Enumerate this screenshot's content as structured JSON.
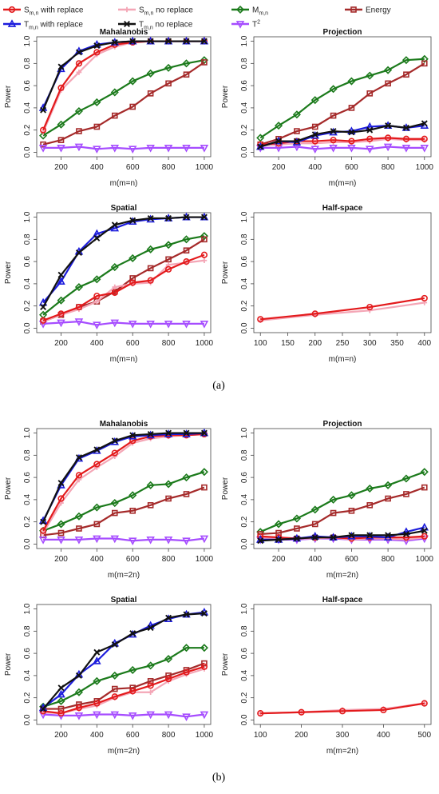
{
  "legend": {
    "items": [
      {
        "key": "s_with",
        "prefix": "S",
        "sub": "m,n",
        "suffix": " with replace",
        "color": "#e31a1c",
        "marker": "circle"
      },
      {
        "key": "s_no",
        "prefix": "S",
        "sub": "m,n",
        "suffix": " no replace",
        "color": "#f4a6b6",
        "marker": "cross"
      },
      {
        "key": "m",
        "prefix": "M",
        "sub": "m,n",
        "suffix": "",
        "color": "#1b7a1b",
        "marker": "diamond"
      },
      {
        "key": "energy",
        "prefix": "Energy",
        "sub": "",
        "suffix": "",
        "color": "#a52a2a",
        "marker": "square"
      },
      {
        "key": "t_with",
        "prefix": "T",
        "sub": "m,n",
        "suffix": " with replace",
        "color": "#1c1cdc",
        "marker": "triangle"
      },
      {
        "key": "t_no",
        "prefix": "T",
        "sub": "m,n",
        "suffix": " no replace",
        "color": "#111111",
        "marker": "x"
      },
      {
        "key": "t2",
        "prefix": "T",
        "sup": "2",
        "suffix": "",
        "color": "#a64dff",
        "marker": "tridown"
      }
    ]
  },
  "subfigure_labels": [
    "(a)",
    "(b)"
  ],
  "y_axis_label": "Power",
  "chart_data": [
    {
      "type": "line",
      "panel": "a",
      "title": "Mahalanobis",
      "xlabel": "m(m=n)",
      "ylabel": "Power",
      "xlim": [
        100,
        1000
      ],
      "xticks": [
        200,
        400,
        600,
        800,
        1000
      ],
      "ylim": [
        0,
        1
      ],
      "yticks": [
        0,
        0.2,
        0.4,
        0.6,
        0.8,
        1.0
      ],
      "x": [
        100,
        200,
        300,
        400,
        500,
        600,
        700,
        800,
        900,
        1000
      ],
      "series": [
        {
          "key": "s_with",
          "values": [
            0.2,
            0.58,
            0.8,
            0.9,
            0.97,
            0.99,
            1.0,
            1.0,
            1.0,
            1.0
          ]
        },
        {
          "key": "s_no",
          "values": [
            0.18,
            0.56,
            0.72,
            0.88,
            0.95,
            0.99,
            1.0,
            1.0,
            1.0,
            1.0
          ]
        },
        {
          "key": "m",
          "values": [
            0.15,
            0.25,
            0.37,
            0.45,
            0.54,
            0.64,
            0.71,
            0.76,
            0.8,
            0.83
          ]
        },
        {
          "key": "energy",
          "values": [
            0.07,
            0.11,
            0.19,
            0.23,
            0.33,
            0.41,
            0.53,
            0.62,
            0.7,
            0.81
          ]
        },
        {
          "key": "t_with",
          "values": [
            0.4,
            0.75,
            0.91,
            0.97,
            0.99,
            1.0,
            1.0,
            1.0,
            1.0,
            1.0
          ]
        },
        {
          "key": "t_no",
          "values": [
            0.38,
            0.77,
            0.9,
            0.96,
            0.99,
            1.0,
            1.0,
            1.0,
            1.0,
            1.0
          ]
        },
        {
          "key": "t2",
          "values": [
            0.04,
            0.04,
            0.05,
            0.03,
            0.04,
            0.03,
            0.04,
            0.04,
            0.04,
            0.04
          ]
        }
      ]
    },
    {
      "type": "line",
      "panel": "a",
      "title": "Projection",
      "xlabel": "m(m=n)",
      "ylabel": "Power",
      "xlim": [
        100,
        1000
      ],
      "xticks": [
        200,
        400,
        600,
        800,
        1000
      ],
      "ylim": [
        0,
        1
      ],
      "yticks": [
        0,
        0.2,
        0.4,
        0.6,
        0.8,
        1.0
      ],
      "x": [
        100,
        200,
        300,
        400,
        500,
        600,
        700,
        800,
        900,
        1000
      ],
      "series": [
        {
          "key": "s_with",
          "values": [
            0.07,
            0.08,
            0.1,
            0.1,
            0.11,
            0.1,
            0.12,
            0.13,
            0.12,
            0.12
          ]
        },
        {
          "key": "s_no",
          "values": [
            0.06,
            0.07,
            0.08,
            0.08,
            0.09,
            0.09,
            0.1,
            0.12,
            0.11,
            0.11
          ]
        },
        {
          "key": "m",
          "values": [
            0.13,
            0.24,
            0.34,
            0.47,
            0.57,
            0.64,
            0.69,
            0.74,
            0.83,
            0.84
          ]
        },
        {
          "key": "energy",
          "values": [
            0.07,
            0.12,
            0.19,
            0.23,
            0.33,
            0.4,
            0.53,
            0.62,
            0.7,
            0.8
          ]
        },
        {
          "key": "t_with",
          "values": [
            0.05,
            0.1,
            0.09,
            0.15,
            0.18,
            0.19,
            0.23,
            0.24,
            0.22,
            0.24
          ]
        },
        {
          "key": "t_no",
          "values": [
            0.05,
            0.1,
            0.1,
            0.16,
            0.19,
            0.18,
            0.2,
            0.24,
            0.22,
            0.26
          ]
        },
        {
          "key": "t2",
          "values": [
            0.04,
            0.04,
            0.05,
            0.03,
            0.04,
            0.04,
            0.03,
            0.05,
            0.04,
            0.04
          ]
        }
      ]
    },
    {
      "type": "line",
      "panel": "a",
      "title": "Spatial",
      "xlabel": "m(m=n)",
      "ylabel": "Power",
      "xlim": [
        100,
        1000
      ],
      "xticks": [
        200,
        400,
        600,
        800,
        1000
      ],
      "ylim": [
        0,
        1
      ],
      "yticks": [
        0,
        0.2,
        0.4,
        0.6,
        0.8,
        1.0
      ],
      "x": [
        100,
        200,
        300,
        400,
        500,
        600,
        700,
        800,
        900,
        1000
      ],
      "series": [
        {
          "key": "s_with",
          "values": [
            0.07,
            0.13,
            0.19,
            0.29,
            0.32,
            0.41,
            0.43,
            0.53,
            0.6,
            0.66
          ]
        },
        {
          "key": "s_no",
          "values": [
            0.06,
            0.12,
            0.17,
            0.24,
            0.37,
            0.4,
            0.41,
            0.57,
            0.59,
            0.61
          ]
        },
        {
          "key": "m",
          "values": [
            0.12,
            0.25,
            0.37,
            0.44,
            0.55,
            0.63,
            0.71,
            0.75,
            0.8,
            0.83
          ]
        },
        {
          "key": "energy",
          "values": [
            0.06,
            0.12,
            0.19,
            0.24,
            0.33,
            0.45,
            0.54,
            0.62,
            0.7,
            0.8
          ]
        },
        {
          "key": "t_with",
          "values": [
            0.23,
            0.42,
            0.69,
            0.85,
            0.9,
            0.96,
            0.98,
            0.99,
            1.0,
            1.0
          ]
        },
        {
          "key": "t_no",
          "values": [
            0.19,
            0.48,
            0.68,
            0.81,
            0.93,
            0.97,
            0.99,
            0.99,
            1.0,
            1.0
          ]
        },
        {
          "key": "t2",
          "values": [
            0.04,
            0.05,
            0.06,
            0.03,
            0.05,
            0.04,
            0.04,
            0.04,
            0.04,
            0.04
          ]
        }
      ]
    },
    {
      "type": "line",
      "panel": "a",
      "title": "Half-space",
      "xlabel": "m(m=n)",
      "ylabel": "Power",
      "xlim": [
        100,
        400
      ],
      "xticks": [
        100,
        150,
        200,
        250,
        300,
        350,
        400
      ],
      "ylim": [
        0,
        1
      ],
      "yticks": [
        0,
        0.2,
        0.4,
        0.6,
        0.8,
        1.0
      ],
      "x": [
        100,
        200,
        300,
        400
      ],
      "series": [
        {
          "key": "s_with",
          "values": [
            0.08,
            0.13,
            0.19,
            0.27
          ]
        },
        {
          "key": "s_no",
          "values": [
            0.07,
            0.12,
            0.16,
            0.23
          ]
        }
      ]
    },
    {
      "type": "line",
      "panel": "b",
      "title": "Mahalanobis",
      "xlabel": "m(m=2n)",
      "ylabel": "Power",
      "xlim": [
        100,
        1000
      ],
      "xticks": [
        200,
        400,
        600,
        800,
        1000
      ],
      "ylim": [
        0,
        1
      ],
      "yticks": [
        0,
        0.2,
        0.4,
        0.6,
        0.8,
        1.0
      ],
      "x": [
        100,
        200,
        300,
        400,
        500,
        600,
        700,
        800,
        900,
        1000
      ],
      "series": [
        {
          "key": "s_with",
          "values": [
            0.12,
            0.41,
            0.62,
            0.72,
            0.82,
            0.93,
            0.97,
            0.98,
            0.98,
            0.99
          ]
        },
        {
          "key": "s_no",
          "values": [
            0.1,
            0.37,
            0.58,
            0.69,
            0.79,
            0.91,
            0.95,
            0.97,
            0.98,
            0.99
          ]
        },
        {
          "key": "m",
          "values": [
            0.12,
            0.18,
            0.25,
            0.33,
            0.37,
            0.44,
            0.53,
            0.54,
            0.6,
            0.65
          ]
        },
        {
          "key": "energy",
          "values": [
            0.08,
            0.1,
            0.14,
            0.18,
            0.28,
            0.3,
            0.35,
            0.41,
            0.45,
            0.51
          ]
        },
        {
          "key": "t_with",
          "values": [
            0.21,
            0.53,
            0.77,
            0.84,
            0.92,
            0.97,
            0.98,
            0.99,
            0.99,
            1.0
          ]
        },
        {
          "key": "t_no",
          "values": [
            0.2,
            0.55,
            0.78,
            0.85,
            0.93,
            0.98,
            0.99,
            1.0,
            1.0,
            1.0
          ]
        },
        {
          "key": "t2",
          "values": [
            0.04,
            0.04,
            0.04,
            0.05,
            0.05,
            0.03,
            0.04,
            0.04,
            0.03,
            0.05
          ]
        }
      ]
    },
    {
      "type": "line",
      "panel": "b",
      "title": "Projection",
      "xlabel": "m(m=2n)",
      "ylabel": "Power",
      "xlim": [
        100,
        1000
      ],
      "xticks": [
        200,
        400,
        600,
        800,
        1000
      ],
      "ylim": [
        0,
        1
      ],
      "yticks": [
        0,
        0.2,
        0.4,
        0.6,
        0.8,
        1.0
      ],
      "x": [
        100,
        200,
        300,
        400,
        500,
        600,
        700,
        800,
        900,
        1000
      ],
      "series": [
        {
          "key": "s_with",
          "values": [
            0.07,
            0.06,
            0.05,
            0.06,
            0.06,
            0.05,
            0.06,
            0.06,
            0.06,
            0.07
          ]
        },
        {
          "key": "s_no",
          "values": [
            0.06,
            0.05,
            0.05,
            0.05,
            0.06,
            0.04,
            0.05,
            0.05,
            0.04,
            0.06
          ]
        },
        {
          "key": "m",
          "values": [
            0.11,
            0.18,
            0.23,
            0.31,
            0.4,
            0.44,
            0.5,
            0.53,
            0.59,
            0.65
          ]
        },
        {
          "key": "energy",
          "values": [
            0.09,
            0.1,
            0.14,
            0.18,
            0.28,
            0.3,
            0.35,
            0.41,
            0.45,
            0.51
          ]
        },
        {
          "key": "t_with",
          "values": [
            0.04,
            0.04,
            0.05,
            0.07,
            0.06,
            0.07,
            0.07,
            0.06,
            0.11,
            0.15
          ]
        },
        {
          "key": "t_no",
          "values": [
            0.03,
            0.04,
            0.05,
            0.06,
            0.06,
            0.08,
            0.08,
            0.08,
            0.09,
            0.12
          ]
        },
        {
          "key": "t2",
          "values": [
            0.04,
            0.04,
            0.04,
            0.05,
            0.05,
            0.04,
            0.04,
            0.04,
            0.03,
            0.05
          ]
        }
      ]
    },
    {
      "type": "line",
      "panel": "b",
      "title": "Spatial",
      "xlabel": "m(m=2n)",
      "ylabel": "Power",
      "xlim": [
        100,
        1000
      ],
      "xticks": [
        200,
        400,
        600,
        800,
        1000
      ],
      "ylim": [
        0,
        1
      ],
      "yticks": [
        0,
        0.2,
        0.4,
        0.6,
        0.8,
        1.0
      ],
      "x": [
        100,
        200,
        300,
        400,
        500,
        600,
        700,
        800,
        900,
        1000
      ],
      "series": [
        {
          "key": "s_with",
          "values": [
            0.08,
            0.06,
            0.11,
            0.15,
            0.21,
            0.26,
            0.31,
            0.37,
            0.43,
            0.48
          ]
        },
        {
          "key": "s_no",
          "values": [
            0.07,
            0.06,
            0.1,
            0.13,
            0.2,
            0.25,
            0.25,
            0.35,
            0.41,
            0.46
          ]
        },
        {
          "key": "m",
          "values": [
            0.12,
            0.17,
            0.25,
            0.35,
            0.4,
            0.45,
            0.49,
            0.55,
            0.65,
            0.65
          ]
        },
        {
          "key": "energy",
          "values": [
            0.1,
            0.1,
            0.14,
            0.17,
            0.28,
            0.29,
            0.35,
            0.4,
            0.45,
            0.51
          ]
        },
        {
          "key": "t_with",
          "values": [
            0.11,
            0.23,
            0.41,
            0.53,
            0.69,
            0.77,
            0.85,
            0.91,
            0.95,
            0.97
          ]
        },
        {
          "key": "t_no",
          "values": [
            0.1,
            0.29,
            0.4,
            0.61,
            0.68,
            0.78,
            0.83,
            0.92,
            0.95,
            0.96
          ]
        },
        {
          "key": "t2",
          "values": [
            0.05,
            0.04,
            0.04,
            0.05,
            0.05,
            0.04,
            0.05,
            0.05,
            0.03,
            0.05
          ]
        }
      ]
    },
    {
      "type": "line",
      "panel": "b",
      "title": "Half-space",
      "xlabel": "m(m=2n)",
      "ylabel": "Power",
      "xlim": [
        100,
        500
      ],
      "xticks": [
        100,
        200,
        300,
        400,
        500
      ],
      "ylim": [
        0,
        1
      ],
      "yticks": [
        0,
        0.2,
        0.4,
        0.6,
        0.8,
        1.0
      ],
      "x": [
        100,
        200,
        300,
        400,
        500
      ],
      "series": [
        {
          "key": "s_with",
          "values": [
            0.06,
            0.07,
            0.08,
            0.09,
            0.15
          ]
        },
        {
          "key": "s_no",
          "values": [
            0.06,
            0.07,
            0.09,
            0.1,
            0.15
          ]
        }
      ]
    }
  ]
}
